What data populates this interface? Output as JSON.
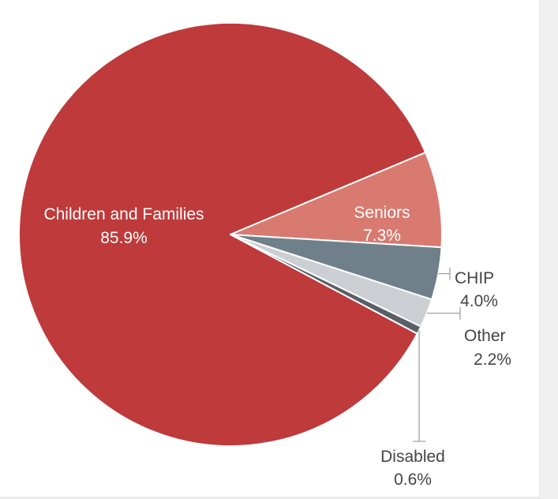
{
  "chart_data": {
    "type": "pie",
    "title": "",
    "slices": [
      {
        "label": "Children and Families",
        "value": 85.9,
        "value_text": "85.9%",
        "color": "#bf3a3b"
      },
      {
        "label": "Seniors",
        "value": 7.3,
        "value_text": "7.3%",
        "color": "#d87a70"
      },
      {
        "label": "CHIP",
        "value": 4.0,
        "value_text": "4.0%",
        "color": "#6f808b"
      },
      {
        "label": "Other",
        "value": 2.2,
        "value_text": "2.2%",
        "color": "#cbcfd3"
      },
      {
        "label": "Disabled",
        "value": 0.6,
        "value_text": "0.6%",
        "color": "#5a5f66"
      }
    ],
    "legend": "none",
    "labels": "on-chart"
  }
}
